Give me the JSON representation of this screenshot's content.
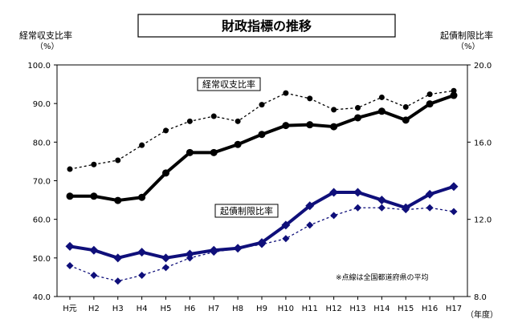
{
  "chart_data": {
    "type": "line",
    "title": "財政指標の推移",
    "categories": [
      "H元",
      "H2",
      "H3",
      "H4",
      "H5",
      "H6",
      "H7",
      "H8",
      "H9",
      "H10",
      "H11",
      "H12",
      "H13",
      "H14",
      "H15",
      "H16",
      "H17"
    ],
    "xlabel": "（年度）",
    "left_axis": {
      "label_line1": "経常収支比率",
      "label_line2": "（%）",
      "range": [
        40,
        100
      ],
      "ticks": [
        "40.0",
        "50.0",
        "60.0",
        "70.0",
        "80.0",
        "90.0",
        "100.0"
      ]
    },
    "right_axis": {
      "label_line1": "起債制限比率",
      "label_line2": "（%）",
      "range": [
        8,
        20
      ],
      "ticks": [
        "8.0",
        "12.0",
        "16.0",
        "20.0"
      ]
    },
    "series": [
      {
        "name": "経常収支比率",
        "axis": "left",
        "color": "#000000",
        "marker": "circle",
        "values": [
          66.0,
          66.0,
          64.9,
          65.7,
          72.0,
          77.3,
          77.3,
          79.4,
          82.0,
          84.3,
          84.5,
          84.0,
          86.3,
          88.0,
          85.7,
          89.9,
          92.1
        ],
        "average_values": [
          73.0,
          74.2,
          75.3,
          79.2,
          83.0,
          85.4,
          86.7,
          85.4,
          89.7,
          92.7,
          91.3,
          88.4,
          88.9,
          91.6,
          89.1,
          92.4,
          93.3
        ]
      },
      {
        "name": "起債制限比率",
        "axis": "right",
        "color": "#0f0f7a",
        "marker": "diamond",
        "values": [
          10.6,
          10.4,
          10.0,
          10.3,
          10.0,
          10.2,
          10.4,
          10.5,
          10.8,
          11.7,
          12.7,
          13.4,
          13.4,
          13.0,
          12.6,
          13.3,
          13.7
        ],
        "average_values": [
          9.6,
          9.1,
          8.8,
          9.1,
          9.5,
          10.0,
          10.3,
          10.5,
          10.7,
          11.0,
          11.7,
          12.2,
          12.6,
          12.6,
          12.5,
          12.6,
          12.4
        ]
      }
    ],
    "series_labels": [
      "経常収支比率",
      "起債制限比率"
    ],
    "note": "※点線は全国都道府県の平均",
    "grid": false,
    "legend": "inline labels"
  }
}
